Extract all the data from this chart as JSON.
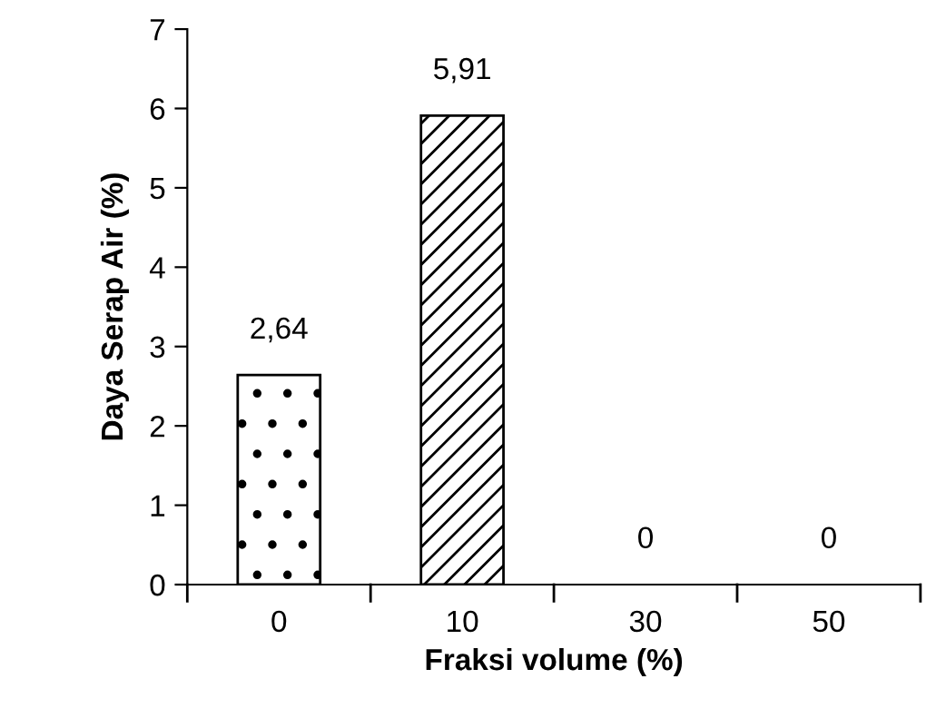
{
  "chart_data": {
    "type": "bar",
    "xlabel": "Fraksi volume (%)",
    "ylabel": "Daya Serap Air (%)",
    "categories": [
      "0",
      "10",
      "30",
      "50"
    ],
    "values": [
      2.64,
      5.91,
      0,
      0
    ],
    "value_labels": [
      "2,64",
      "5,91",
      "0",
      "0"
    ],
    "color": "#ffffff",
    "ylim": [
      0,
      7
    ],
    "yticks": [
      0,
      1,
      2,
      3,
      4,
      5,
      6,
      7
    ],
    "grid": false,
    "legend": false
  }
}
